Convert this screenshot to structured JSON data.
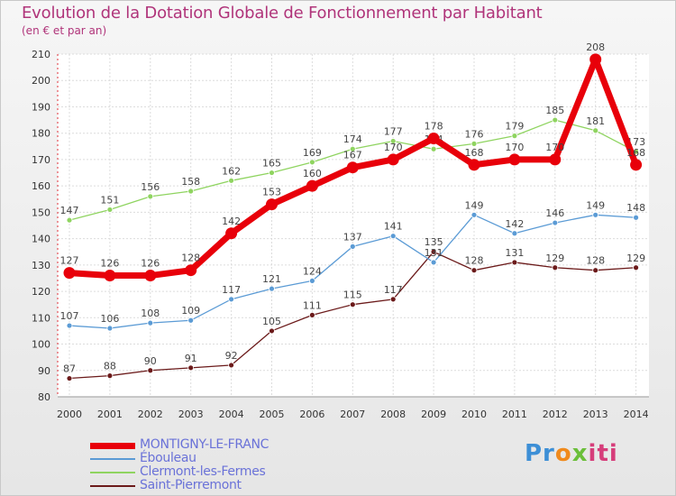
{
  "chart_data": {
    "type": "line",
    "title": "Evolution de la Dotation Globale de Fonctionnement par Habitant",
    "subtitle": "(en € et par an)",
    "xlabel": "",
    "ylabel": "",
    "x": [
      "2000",
      "2001",
      "2002",
      "2003",
      "2004",
      "2005",
      "2006",
      "2007",
      "2008",
      "2009",
      "2010",
      "2011",
      "2012",
      "2013",
      "2014"
    ],
    "ylim": [
      80,
      210
    ],
    "yticks": [
      80,
      90,
      100,
      110,
      120,
      130,
      140,
      150,
      160,
      170,
      180,
      190,
      200,
      210
    ],
    "grid": true,
    "legend_position": "bottom-left",
    "series": [
      {
        "name": "MONTIGNY-LE-FRANC",
        "color": "#e8000a",
        "values": [
          127,
          126,
          126,
          128,
          142,
          153,
          160,
          167,
          170,
          178,
          168,
          170,
          170,
          208,
          168
        ]
      },
      {
        "name": "Ébouleau",
        "color": "#5b9bd5",
        "values": [
          107,
          106,
          108,
          109,
          117,
          121,
          124,
          137,
          141,
          131,
          149,
          142,
          146,
          149,
          148
        ]
      },
      {
        "name": "Clermont-les-Fermes",
        "color": "#8fd460",
        "values": [
          147,
          151,
          156,
          158,
          162,
          165,
          169,
          174,
          177,
          174,
          176,
          179,
          185,
          181,
          173
        ]
      },
      {
        "name": "Saint-Pierremont",
        "color": "#6b1a1a",
        "values": [
          87,
          88,
          90,
          91,
          92,
          105,
          111,
          115,
          117,
          135,
          128,
          131,
          129,
          128,
          129
        ]
      }
    ]
  },
  "brand": {
    "p1": "Pr",
    "p2": "o",
    "p3": "x",
    "p4": "iti"
  }
}
